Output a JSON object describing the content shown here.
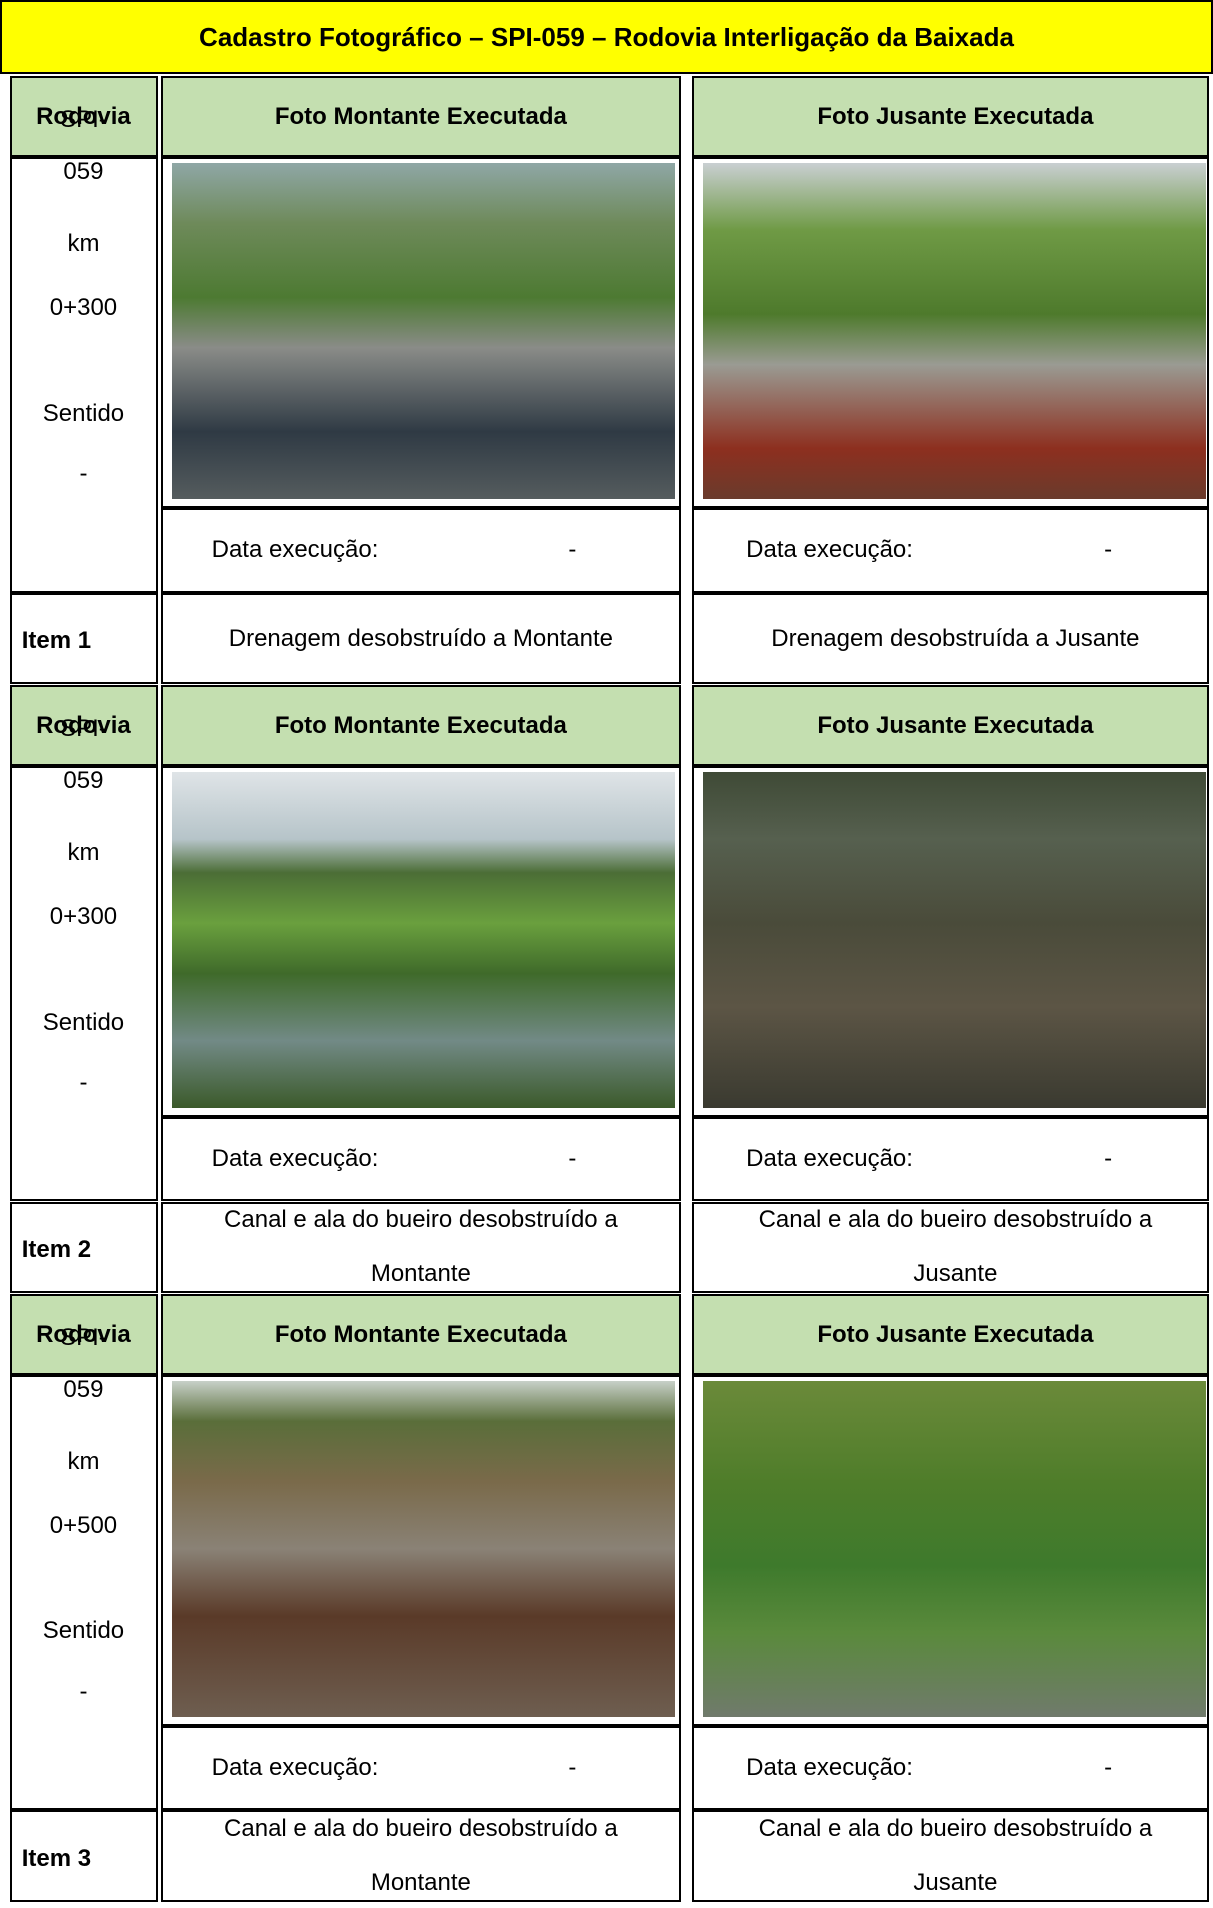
{
  "title": "Cadastro Fotográfico – SPI-059 – Rodovia Interligação da Baixada",
  "sections": [
    {
      "header": [
        "Rodovia",
        "Foto Montante Executada",
        "Foto Jusante Executada"
      ],
      "rodovia": [
        "SPI-",
        "059",
        "km",
        "0+300",
        "Sentido",
        "-"
      ],
      "montante_date": [
        "Data execução:",
        "-"
      ],
      "jusante_date": [
        "Data execução:",
        "-"
      ],
      "item": "Item 1",
      "montante_caption": [
        "Drenagem desobstruído a Montante"
      ],
      "jusante_caption": [
        "Drenagem desobstruída a Jusante"
      ]
    },
    {
      "header": [
        "Rodovia",
        "Foto Montante Executada",
        "Foto Jusante Executada"
      ],
      "rodovia": [
        "SPI-",
        "059",
        "km",
        "0+300",
        "Sentido",
        "-"
      ],
      "montante_date": [
        "Data execução:",
        "-"
      ],
      "jusante_date": [
        "Data execução:",
        "-"
      ],
      "item": "Item 2",
      "montante_caption": [
        "Canal e ala do bueiro desobstruído a",
        "Montante"
      ],
      "jusante_caption": [
        "Canal e ala do bueiro desobstruído a",
        "Jusante"
      ]
    },
    {
      "header": [
        "Rodovia",
        "Foto Montante Executada",
        "Foto Jusante Executada"
      ],
      "rodovia": [
        "SPI-",
        "059",
        "km",
        "0+500",
        "Sentido",
        "-"
      ],
      "montante_date": [
        "Data execução:",
        "-"
      ],
      "jusante_date": [
        "Data execução:",
        "-"
      ],
      "item": "Item 3",
      "montante_caption": [
        "Canal e ala do bueiro desobstruído a",
        "Montante"
      ],
      "jusante_caption": [
        "Canal e ala do bueiro desobstruído a",
        "Jusante"
      ]
    }
  ]
}
